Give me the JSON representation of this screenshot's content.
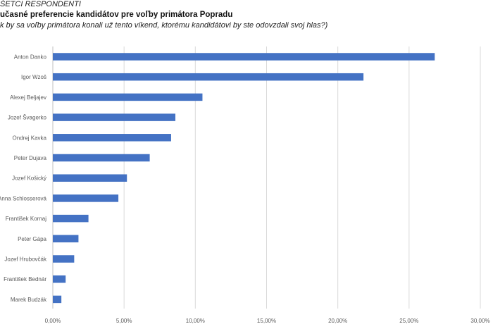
{
  "header": {
    "line1": "ŠETCI RESPONDENTI",
    "line2": "učasné preferencie kandidátov pre voľby primátora Popradu",
    "line3": "k by sa voľby primátora konali už tento víkend, ktorému kandidátovi by ste odovzdali svoj hlas?)"
  },
  "chart_data": {
    "type": "bar",
    "orientation": "horizontal",
    "categories": [
      "Anton Danko",
      "Igor Wzoš",
      "Alexej Beljajev",
      "Jozef Švagerko",
      "Ondrej Kavka",
      "Peter Dujava",
      "Jozef Košický",
      "Anna Schlosserová",
      "František Kornaj",
      "Peter Gápa",
      "Jozef Hrubovčák",
      "František Bednár",
      "Marek Budzák"
    ],
    "values": [
      26.8,
      21.8,
      10.5,
      8.6,
      8.3,
      6.8,
      5.2,
      4.6,
      2.5,
      1.8,
      1.5,
      0.9,
      0.6
    ],
    "xlim": [
      0,
      30
    ],
    "x_ticks": [
      "0,00%",
      "5,00%",
      "10,00%",
      "15,00%",
      "20,00%",
      "25,00%",
      "30,00%"
    ],
    "grid": true,
    "colors": {
      "bar": "#4472c4",
      "grid": "#d9d9d9",
      "axis": "#bfbfbf",
      "label": "#595959"
    }
  }
}
